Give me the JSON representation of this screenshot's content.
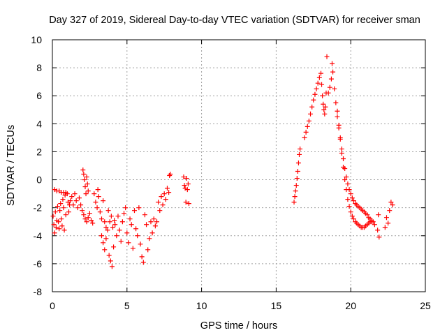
{
  "chart_data": {
    "type": "scatter",
    "title": "Day 327 of 2019, Sidereal Day-to-day VTEC variation (SDTVAR) for receiver sman",
    "xlabel": "GPS time / hours",
    "ylabel": "SDTVAR / TECUs",
    "xlim": [
      0,
      25
    ],
    "ylim": [
      -8,
      10
    ],
    "xticks": [
      0,
      5,
      10,
      15,
      20,
      25
    ],
    "yticks": [
      -8,
      -6,
      -4,
      -2,
      0,
      2,
      4,
      6,
      8,
      10
    ],
    "xtick_labels": [
      "0",
      "5",
      "10",
      "15",
      "20",
      "25"
    ],
    "ytick_labels": [
      "-8",
      "-6",
      "-4",
      "-2",
      "0",
      "2",
      "4",
      "6",
      "8",
      "10"
    ],
    "grid": true,
    "marker": "+",
    "color": "#ff0000",
    "series": [
      {
        "name": "sman",
        "points": [
          [
            0.05,
            -2.6
          ],
          [
            0.1,
            -3.2
          ],
          [
            0.15,
            -3.8
          ],
          [
            0.2,
            -2.3
          ],
          [
            0.25,
            -3.4
          ],
          [
            0.3,
            -2.9
          ],
          [
            0.35,
            -1.9
          ],
          [
            0.4,
            -3.0
          ],
          [
            0.45,
            -3.5
          ],
          [
            0.5,
            -2.2
          ],
          [
            0.55,
            -1.7
          ],
          [
            0.6,
            -2.8
          ],
          [
            0.65,
            -3.3
          ],
          [
            0.7,
            -1.4
          ],
          [
            0.75,
            -2.0
          ],
          [
            0.8,
            -3.6
          ],
          [
            0.85,
            -1.1
          ],
          [
            0.9,
            -2.5
          ],
          [
            0.15,
            -0.7
          ],
          [
            0.3,
            -0.8
          ],
          [
            0.45,
            -0.8
          ],
          [
            0.6,
            -0.9
          ],
          [
            0.75,
            -0.9
          ],
          [
            0.9,
            -0.9
          ],
          [
            1.0,
            -1.0
          ],
          [
            1.05,
            -1.6
          ],
          [
            1.1,
            -2.3
          ],
          [
            1.15,
            -1.8
          ],
          [
            1.2,
            -1.5
          ],
          [
            1.3,
            -1.2
          ],
          [
            1.4,
            -1.8
          ],
          [
            1.5,
            -1.0
          ],
          [
            1.6,
            -1.5
          ],
          [
            1.7,
            -2.0
          ],
          [
            1.8,
            -1.3
          ],
          [
            1.9,
            -1.8
          ],
          [
            2.0,
            -2.2
          ],
          [
            2.05,
            0.7
          ],
          [
            2.1,
            0.4
          ],
          [
            2.15,
            0.0
          ],
          [
            2.2,
            -0.5
          ],
          [
            2.25,
            -1.0
          ],
          [
            2.3,
            0.2
          ],
          [
            2.35,
            -0.3
          ],
          [
            2.4,
            -0.8
          ],
          [
            2.1,
            -2.5
          ],
          [
            2.2,
            -2.8
          ],
          [
            2.3,
            -3.0
          ],
          [
            2.4,
            -2.7
          ],
          [
            2.5,
            -2.4
          ],
          [
            2.6,
            -2.9
          ],
          [
            2.7,
            -3.1
          ],
          [
            2.8,
            -1.0
          ],
          [
            2.9,
            -1.6
          ],
          [
            3.0,
            -2.0
          ],
          [
            3.05,
            -0.7
          ],
          [
            3.1,
            -1.2
          ],
          [
            3.2,
            -2.3
          ],
          [
            3.3,
            -2.8
          ],
          [
            3.4,
            -1.5
          ],
          [
            3.5,
            -3.0
          ],
          [
            3.6,
            -3.4
          ],
          [
            3.3,
            -4.0
          ],
          [
            3.4,
            -4.5
          ],
          [
            3.5,
            -5.0
          ],
          [
            3.6,
            -4.2
          ],
          [
            3.7,
            -3.6
          ],
          [
            3.75,
            -2.2
          ],
          [
            3.8,
            -5.4
          ],
          [
            3.85,
            -3.0
          ],
          [
            3.9,
            -5.8
          ],
          [
            3.95,
            -2.6
          ],
          [
            4.0,
            -6.2
          ],
          [
            4.05,
            -3.4
          ],
          [
            4.1,
            -4.8
          ],
          [
            4.15,
            -2.9
          ],
          [
            4.2,
            -3.2
          ],
          [
            4.3,
            -4.0
          ],
          [
            4.4,
            -2.6
          ],
          [
            4.5,
            -3.6
          ],
          [
            4.6,
            -4.4
          ],
          [
            4.7,
            -3.0
          ],
          [
            4.8,
            -2.4
          ],
          [
            4.9,
            -2.0
          ],
          [
            5.0,
            -3.8
          ],
          [
            5.1,
            -4.5
          ],
          [
            5.2,
            -2.8
          ],
          [
            5.3,
            -3.2
          ],
          [
            5.4,
            -4.9
          ],
          [
            5.5,
            -2.2
          ],
          [
            5.6,
            -3.5
          ],
          [
            5.7,
            -4.0
          ],
          [
            5.8,
            -2.0
          ],
          [
            5.9,
            -4.6
          ],
          [
            6.0,
            -5.5
          ],
          [
            6.1,
            -5.9
          ],
          [
            6.2,
            -2.5
          ],
          [
            6.3,
            -3.2
          ],
          [
            6.4,
            -5.0
          ],
          [
            6.5,
            -4.2
          ],
          [
            6.6,
            -3.0
          ],
          [
            6.7,
            -3.8
          ],
          [
            6.8,
            -2.8
          ],
          [
            6.9,
            -3.3
          ],
          [
            7.0,
            -3.0
          ],
          [
            7.1,
            -1.6
          ],
          [
            7.2,
            -2.2
          ],
          [
            7.3,
            -1.2
          ],
          [
            7.4,
            -1.8
          ],
          [
            7.5,
            -1.0
          ],
          [
            7.6,
            -1.4
          ],
          [
            7.7,
            -0.6
          ],
          [
            7.8,
            -0.9
          ],
          [
            7.85,
            0.3
          ],
          [
            7.9,
            0.4
          ],
          [
            8.8,
            0.2
          ],
          [
            8.85,
            -0.4
          ],
          [
            8.9,
            -0.6
          ],
          [
            8.95,
            -1.6
          ],
          [
            9.0,
            0.1
          ],
          [
            9.05,
            -0.7
          ],
          [
            9.1,
            -0.3
          ],
          [
            9.15,
            -1.7
          ],
          [
            16.2,
            -1.6
          ],
          [
            16.25,
            -1.2
          ],
          [
            16.3,
            -0.8
          ],
          [
            16.35,
            -0.4
          ],
          [
            16.4,
            0.1
          ],
          [
            16.45,
            0.6
          ],
          [
            16.5,
            1.2
          ],
          [
            16.55,
            1.8
          ],
          [
            16.6,
            2.2
          ],
          [
            16.9,
            3.0
          ],
          [
            17.0,
            3.4
          ],
          [
            17.1,
            3.8
          ],
          [
            17.2,
            4.2
          ],
          [
            17.3,
            4.7
          ],
          [
            17.4,
            5.2
          ],
          [
            17.5,
            5.7
          ],
          [
            17.6,
            6.1
          ],
          [
            17.7,
            6.5
          ],
          [
            17.8,
            6.9
          ],
          [
            17.9,
            7.3
          ],
          [
            18.0,
            7.6
          ],
          [
            18.05,
            6.8
          ],
          [
            18.1,
            6.0
          ],
          [
            18.15,
            5.4
          ],
          [
            18.2,
            5.0
          ],
          [
            18.25,
            4.7
          ],
          [
            18.3,
            5.2
          ],
          [
            18.35,
            6.2
          ],
          [
            18.4,
            8.8
          ],
          [
            18.5,
            6.2
          ],
          [
            18.6,
            6.6
          ],
          [
            18.7,
            7.2
          ],
          [
            18.75,
            8.3
          ],
          [
            18.8,
            7.7
          ],
          [
            18.9,
            6.5
          ],
          [
            19.0,
            5.5
          ],
          [
            19.1,
            4.5
          ],
          [
            19.2,
            3.7
          ],
          [
            19.3,
            3.0
          ],
          [
            19.4,
            2.2
          ],
          [
            19.5,
            1.5
          ],
          [
            19.6,
            0.8
          ],
          [
            19.7,
            0.2
          ],
          [
            19.8,
            -0.3
          ],
          [
            19.9,
            -0.7
          ],
          [
            20.0,
            -1.0
          ],
          [
            20.1,
            -1.3
          ],
          [
            20.2,
            -1.5
          ],
          [
            20.3,
            -1.7
          ],
          [
            20.4,
            -1.8
          ],
          [
            20.5,
            -1.9
          ],
          [
            20.6,
            -2.0
          ],
          [
            20.7,
            -2.1
          ],
          [
            20.8,
            -2.2
          ],
          [
            20.9,
            -2.3
          ],
          [
            21.0,
            -2.4
          ],
          [
            21.1,
            -2.5
          ],
          [
            21.2,
            -2.7
          ],
          [
            21.3,
            -2.8
          ],
          [
            21.4,
            -3.0
          ],
          [
            21.5,
            -3.0
          ],
          [
            21.6,
            -3.2
          ],
          [
            19.1,
            4.9
          ],
          [
            19.2,
            3.9
          ],
          [
            19.3,
            2.9
          ],
          [
            19.4,
            1.9
          ],
          [
            19.5,
            0.9
          ],
          [
            19.6,
            0.0
          ],
          [
            19.7,
            -0.7
          ],
          [
            19.8,
            -1.4
          ],
          [
            19.9,
            -1.9
          ],
          [
            20.0,
            -2.3
          ],
          [
            20.1,
            -2.6
          ],
          [
            20.2,
            -2.8
          ],
          [
            20.3,
            -3.0
          ],
          [
            20.4,
            -3.1
          ],
          [
            20.5,
            -3.2
          ],
          [
            20.6,
            -3.3
          ],
          [
            20.7,
            -3.4
          ],
          [
            20.8,
            -3.4
          ],
          [
            20.9,
            -3.4
          ],
          [
            21.0,
            -3.3
          ],
          [
            21.1,
            -3.2
          ],
          [
            21.2,
            -3.1
          ],
          [
            21.3,
            -3.0
          ],
          [
            21.4,
            -2.9
          ],
          [
            21.8,
            -3.6
          ],
          [
            21.9,
            -4.1
          ],
          [
            21.85,
            -2.5
          ],
          [
            22.3,
            -3.4
          ],
          [
            22.4,
            -2.7
          ],
          [
            22.5,
            -3.1
          ],
          [
            22.6,
            -2.2
          ],
          [
            22.7,
            -1.6
          ],
          [
            22.8,
            -1.8
          ]
        ]
      }
    ]
  }
}
